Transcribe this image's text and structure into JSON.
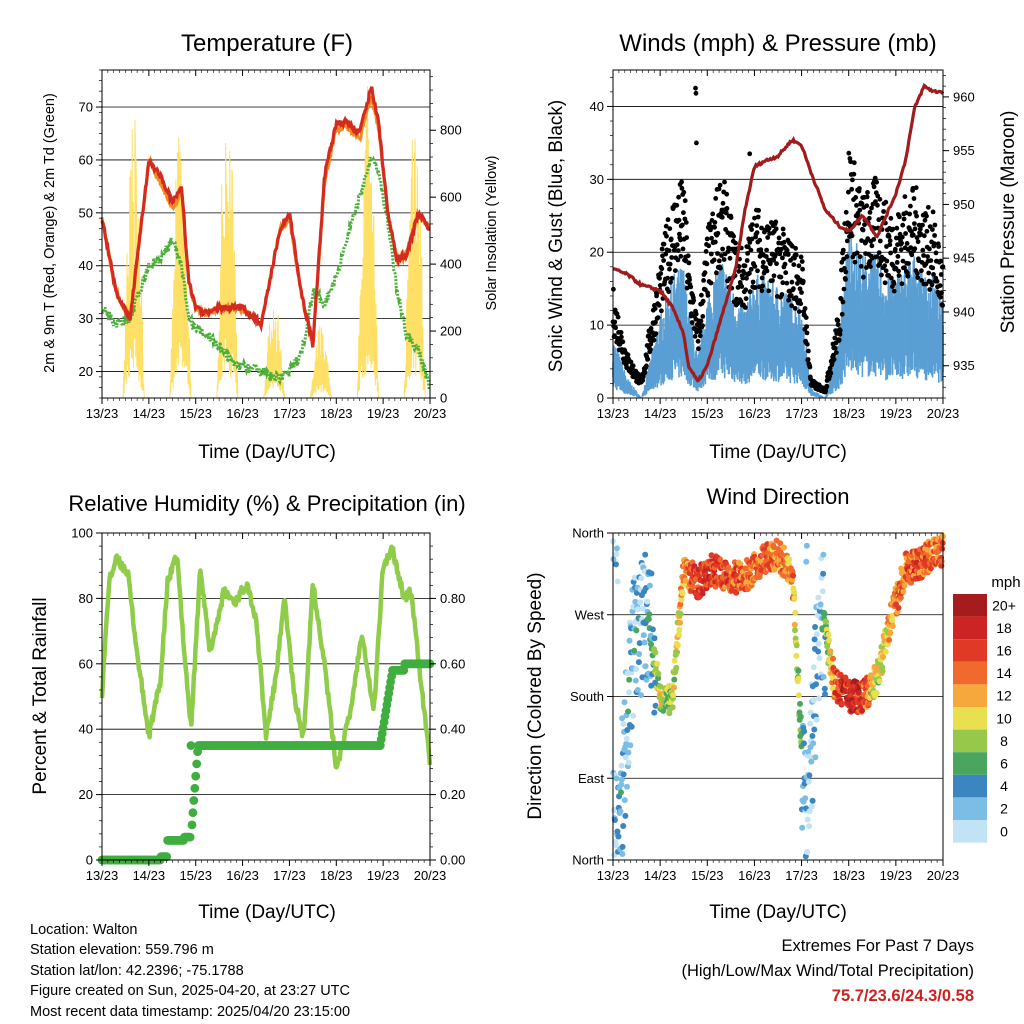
{
  "x_ticks": [
    "13/23",
    "14/23",
    "15/23",
    "16/23",
    "17/23",
    "18/23",
    "19/23",
    "20/23"
  ],
  "colors": {
    "red": "#d42a1f",
    "orange": "#f08a22",
    "green": "#4caf3a",
    "yellow": "#ffe066",
    "black": "#000000",
    "blue": "#5a9fd4",
    "maroon": "#a01c1c",
    "rh": "#8fcc4a",
    "precip": "#3fae3f",
    "extreme": "#cc2222"
  },
  "temp": {
    "title": "Temperature (F)",
    "xlabel": "Time (Day/UTC)",
    "ylabel": "2m & 9m T (Red, Orange) & 2m Td (Green)",
    "y2label": "Solar Insolation (Yellow)",
    "ylim": [
      15,
      77
    ],
    "yticks": [
      20,
      30,
      40,
      50,
      60,
      70
    ],
    "y2lim": [
      0,
      980
    ],
    "y2ticks": [
      0,
      200,
      400,
      600,
      800
    ],
    "y2ticklabels": [
      "0",
      "200",
      "400",
      "600",
      "800"
    ]
  },
  "winds": {
    "title": "Winds (mph) & Pressure (mb)",
    "xlabel": "Time (Day/UTC)",
    "ylabel": "Sonic Wind & Gust (Blue, Black)",
    "y2label": "Station Pressure (Maroon)",
    "ylim": [
      0,
      45
    ],
    "yticks": [
      0,
      10,
      20,
      30,
      40
    ],
    "y2lim": [
      932,
      962.5
    ],
    "y2ticks": [
      935,
      940,
      945,
      950,
      955,
      960
    ],
    "y2ticklabels": [
      "935",
      "940",
      "945",
      "950",
      "955",
      "960"
    ]
  },
  "rh": {
    "title": "Relative Humidity (%) & Precipitation (in)",
    "xlabel": "Time (Day/UTC)",
    "ylabel": "Percent & Total Rainfall",
    "ylim": [
      0,
      100
    ],
    "yticks": [
      0,
      20,
      40,
      60,
      80,
      100
    ],
    "y2lim": [
      0,
      1.0
    ],
    "y2ticks": [
      0,
      0.2,
      0.4,
      0.6,
      0.8
    ],
    "y2ticklabels": [
      "0.00",
      "0.20",
      "0.40",
      "0.60",
      "0.80"
    ]
  },
  "dir": {
    "title": "Wind Direction",
    "xlabel": "Time (Day/UTC)",
    "ylabel": "Direction (Colored By Speed)",
    "ylim": [
      0,
      360
    ],
    "yticks": [
      0,
      90,
      180,
      270,
      360
    ],
    "yticklabels": [
      "North",
      "East",
      "South",
      "West",
      "North"
    ]
  },
  "legend": {
    "title": "mph",
    "labels": [
      "20+",
      "18",
      "16",
      "14",
      "12",
      "10",
      "8",
      "6",
      "4",
      "2",
      "0"
    ],
    "colors": [
      "#a61c1c",
      "#cc2424",
      "#e03a26",
      "#f06a2e",
      "#f7a83c",
      "#e8e050",
      "#98c84a",
      "#4aa65e",
      "#3b86c0",
      "#7cbde6",
      "#c2e3f6"
    ]
  },
  "info": {
    "location": "Location: Walton",
    "elevation": "Station elevation: 559.796 m",
    "latlon": "Station lat/lon: 42.2396; -75.1788",
    "created": "Figure created on Sun, 2025-04-20, at 23:27 UTC",
    "recent": "Most recent data timestamp: 2025/04/20 23:15:00"
  },
  "extremes": {
    "title": "Extremes For Past 7 Days",
    "subtitle": "(High/Low/Max Wind/Total Precipitation)",
    "values": "75.7/23.6/24.3/0.58"
  },
  "chart_data": [
    {
      "type": "line",
      "title": "Temperature (F)",
      "xlabel": "Time (Day/UTC)",
      "ylabel": "2m & 9m T (Red, Orange) & 2m Td (Green)",
      "ylabel2": "Solar Insolation (Yellow)",
      "x": [
        0,
        0.3,
        0.6,
        1.0,
        1.25,
        1.5,
        1.7,
        1.85,
        2.0,
        2.25,
        2.5,
        2.75,
        3.0,
        3.4,
        3.6,
        3.8,
        4.0,
        4.25,
        4.5,
        4.75,
        5.0,
        5.25,
        5.5,
        5.75,
        5.9,
        6.1,
        6.3,
        6.5,
        6.75,
        7.0
      ],
      "series": [
        {
          "values": [
            49,
            35,
            30,
            60,
            57,
            52,
            55,
            37,
            32,
            31,
            32,
            32,
            32,
            29,
            38,
            47,
            50,
            35,
            25,
            57,
            67,
            67,
            65,
            74,
            67,
            50,
            41,
            42,
            50,
            47
          ]
        },
        {
          "values": [
            49,
            35,
            30,
            60,
            56,
            51,
            54,
            37,
            32,
            31,
            32,
            32,
            32,
            29,
            38,
            47,
            49,
            35,
            25,
            56,
            66,
            66,
            64,
            72,
            66,
            50,
            41,
            42,
            50,
            47
          ]
        },
        {
          "values": [
            32,
            29,
            30,
            40,
            41,
            45,
            40,
            30,
            28,
            27,
            25,
            22,
            21,
            20,
            19,
            19,
            20,
            23,
            35,
            33,
            38,
            46,
            53,
            61,
            58,
            48,
            35,
            27,
            24,
            17
          ]
        }
      ],
      "insolation": [
        0,
        960
      ],
      "ylim": [
        15,
        77
      ],
      "ylim2": [
        0,
        980
      ]
    },
    {
      "type": "scatter",
      "title": "Winds (mph) & Pressure (mb)",
      "xlabel": "Time (Day/UTC)",
      "ylabel": "Sonic Wind & Gust (Blue, Black)",
      "ylabel2": "Station Pressure (Maroon)",
      "x": [
        0,
        0.3,
        0.6,
        1.0,
        1.25,
        1.5,
        1.6,
        1.8,
        2.0,
        2.3,
        2.6,
        2.8,
        3.0,
        3.2,
        3.5,
        3.8,
        4.0,
        4.2,
        4.5,
        4.8,
        5.0,
        5.3,
        5.6,
        5.8,
        6.0,
        6.2,
        6.4,
        6.6,
        6.8,
        7.0
      ],
      "series": [
        {
          "values": [
            944,
            943.5,
            942.5,
            942,
            940.5,
            938,
            935,
            933.5,
            935,
            939.5,
            944,
            949.5,
            953.5,
            954,
            954.5,
            956,
            955.5,
            953,
            949.5,
            948,
            947.5,
            949,
            947,
            949,
            951,
            954,
            959,
            961,
            960.5,
            960.5
          ]
        },
        {
          "values": [
            12,
            5,
            2,
            15,
            22,
            24,
            16,
            8,
            18,
            25,
            17,
            16,
            21,
            20,
            19,
            17,
            16,
            2,
            1,
            10,
            28,
            22,
            24,
            21,
            20,
            22,
            23,
            21,
            20,
            15
          ]
        },
        {
          "values": [
            6,
            2,
            0,
            8,
            12,
            13,
            9,
            4,
            10,
            14,
            10,
            9,
            12,
            12,
            11,
            10,
            9,
            1,
            0,
            6,
            17,
            14,
            14,
            12,
            12,
            13,
            14,
            12,
            12,
            9
          ]
        }
      ],
      "ylim": [
        0,
        45
      ],
      "ylim2": [
        932,
        962.5
      ]
    },
    {
      "type": "line",
      "title": "Relative Humidity (%) & Precipitation (in)",
      "xlabel": "Time (Day/UTC)",
      "ylabel": "Percent & Total Rainfall",
      "x": [
        0,
        0.15,
        0.3,
        0.55,
        0.75,
        1.0,
        1.25,
        1.4,
        1.6,
        1.75,
        1.9,
        2.1,
        2.3,
        2.6,
        2.85,
        3.1,
        3.3,
        3.5,
        3.7,
        3.9,
        4.1,
        4.3,
        4.5,
        4.75,
        5.0,
        5.3,
        5.55,
        5.8,
        6.0,
        6.2,
        6.45,
        6.6,
        6.8,
        7.0
      ],
      "series": [
        {
          "values": [
            51,
            85,
            92,
            88,
            63,
            38,
            55,
            85,
            93,
            65,
            40,
            90,
            63,
            82,
            79,
            85,
            72,
            38,
            55,
            80,
            50,
            37,
            85,
            60,
            28,
            45,
            70,
            45,
            90,
            95,
            80,
            82,
            55,
            30
          ]
        },
        {
          "values": [
            0,
            0,
            0,
            0,
            0,
            0,
            0.01,
            0.06,
            0.06,
            0.07,
            0.35,
            0.35,
            0.35,
            0.35,
            0.35,
            0.35,
            0.35,
            0.35,
            0.35,
            0.35,
            0.35,
            0.35,
            0.35,
            0.35,
            0.35,
            0.35,
            0.35,
            0.35,
            0.48,
            0.58,
            0.6,
            0.6,
            0.6,
            0.6
          ]
        }
      ],
      "ylim": [
        0,
        100
      ],
      "ylim2": [
        0,
        1.0
      ]
    },
    {
      "type": "scatter",
      "title": "Wind Direction",
      "xlabel": "Time (Day/UTC)",
      "ylabel": "Direction (Colored By Speed)",
      "x": [
        0.1,
        0.4,
        0.7,
        1.0,
        1.25,
        1.5,
        1.8,
        2.1,
        2.5,
        2.9,
        3.2,
        3.5,
        3.8,
        4.1,
        4.4,
        4.7,
        5.0,
        5.3,
        5.6,
        5.9,
        6.2,
        6.5,
        6.8
      ],
      "series": [
        {
          "values": [
            20,
            220,
            280,
            180,
            175,
            320,
            305,
            320,
            310,
            315,
            330,
            335,
            320,
            30,
            280,
            195,
            180,
            180,
            200,
            265,
            320,
            325,
            340
          ]
        },
        {
          "values": [
            2,
            3,
            2,
            9,
            8,
            12,
            17,
            16,
            15,
            14,
            14,
            13,
            13,
            1,
            1,
            15,
            18,
            16,
            9,
            12,
            14,
            15,
            14
          ]
        }
      ],
      "ylim": [
        0,
        360
      ]
    }
  ]
}
